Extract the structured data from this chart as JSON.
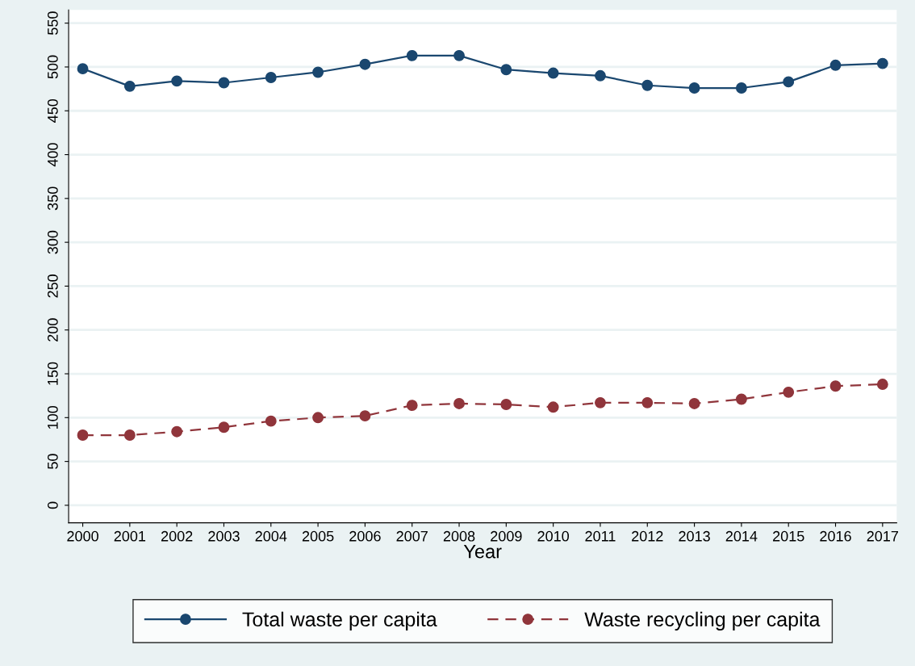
{
  "chart_data": {
    "type": "line",
    "xlabel": "Year",
    "categories": [
      "2000",
      "2001",
      "2002",
      "2003",
      "2004",
      "2005",
      "2006",
      "2007",
      "2008",
      "2009",
      "2010",
      "2011",
      "2012",
      "2013",
      "2014",
      "2015",
      "2016",
      "2017"
    ],
    "series": [
      {
        "name": "Total waste per capita",
        "color": "#1a476f",
        "line_style": "solid",
        "values": [
          498,
          478,
          484,
          482,
          488,
          494,
          503,
          513,
          513,
          497,
          493,
          490,
          479,
          476,
          476,
          483,
          502,
          504
        ]
      },
      {
        "name": "Waste recycling per capita",
        "color": "#90353b",
        "line_style": "dashed",
        "values": [
          80,
          80,
          84,
          89,
          96,
          100,
          102,
          114,
          116,
          115,
          112,
          117,
          117,
          116,
          121,
          129,
          136,
          138
        ]
      }
    ],
    "ylim": [
      -20,
      565
    ],
    "yticks": [
      0,
      50,
      100,
      150,
      200,
      250,
      300,
      350,
      400,
      450,
      500,
      550
    ],
    "grid": "y",
    "marker": "circle",
    "legend": "bottom"
  }
}
